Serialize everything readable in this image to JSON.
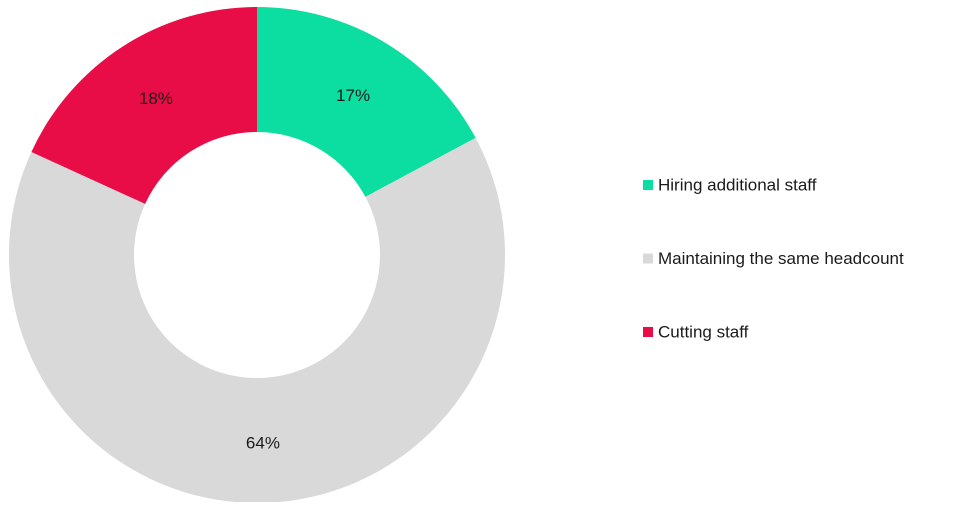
{
  "chart_data": {
    "type": "donut",
    "categories": [
      "Hiring additional staff",
      "Maintaining the same headcount",
      "Cutting staff"
    ],
    "values": [
      17,
      64,
      18
    ],
    "value_labels": [
      "17%",
      "64%",
      "18%"
    ],
    "colors": [
      "#0bdea0",
      "#d9d9d9",
      "#e80c47"
    ],
    "legend": "right"
  }
}
